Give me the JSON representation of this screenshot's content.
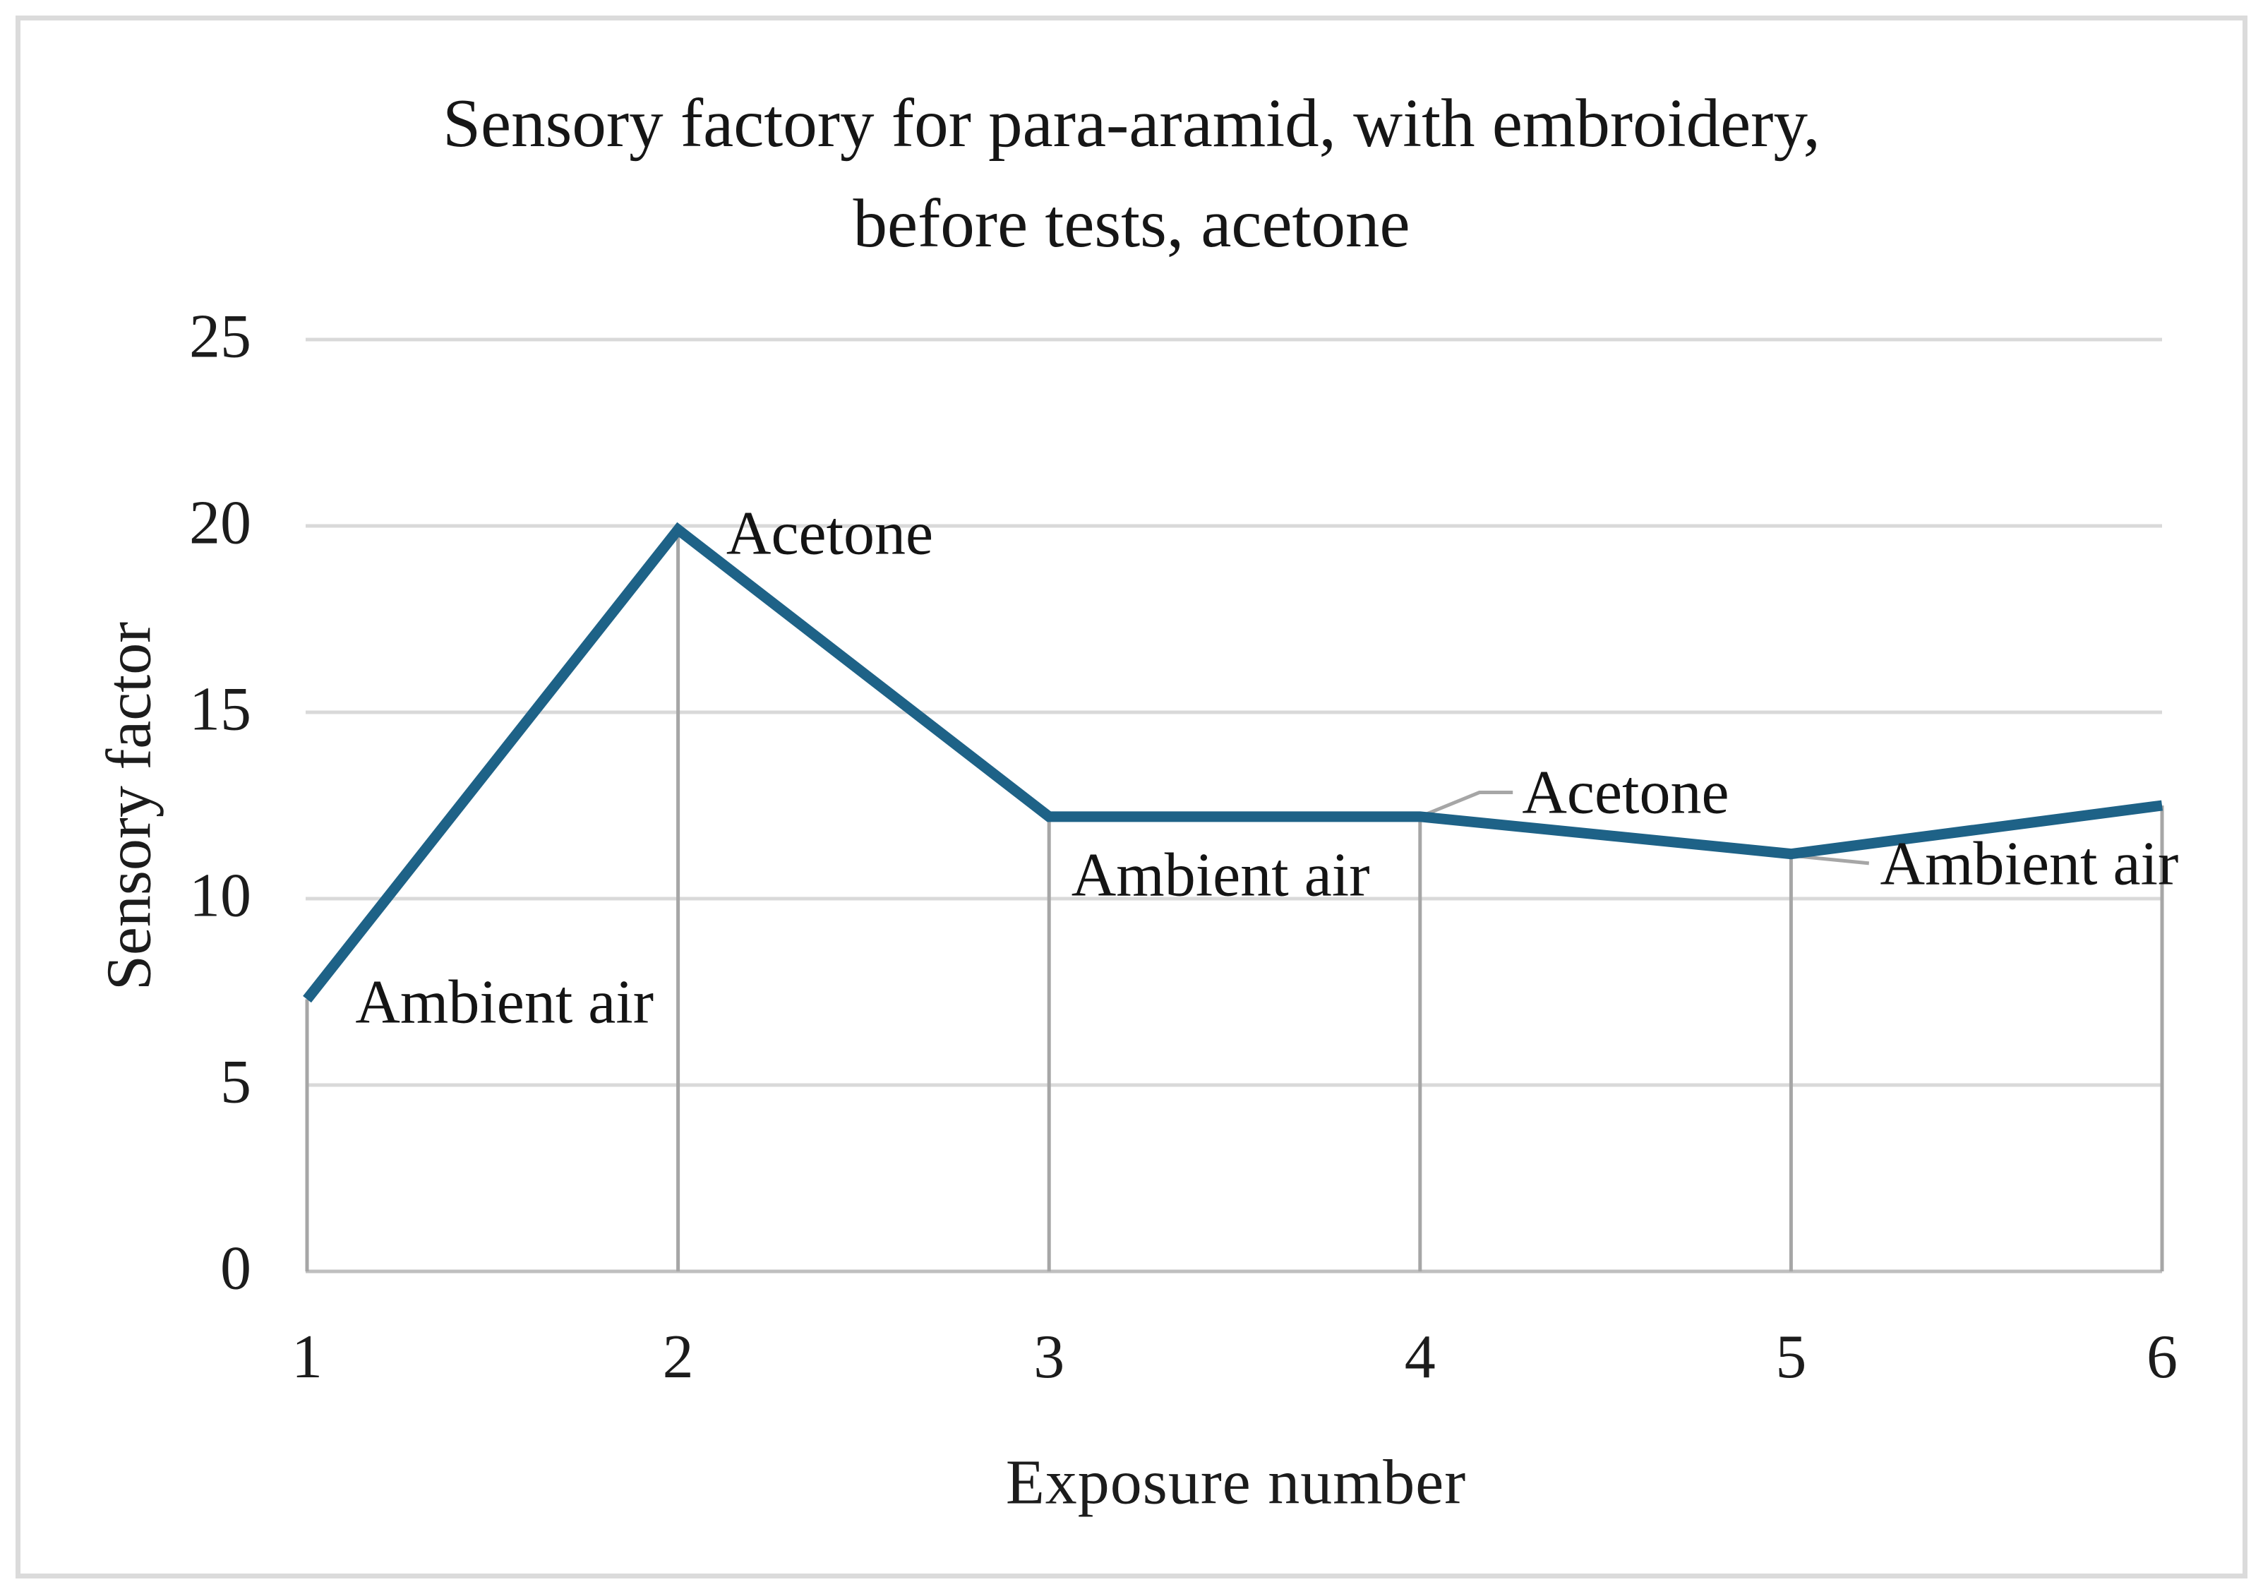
{
  "figure": {
    "title_line1": "Sensory factory for para-aramid, with embroidery,",
    "title_line2": "before tests, acetone"
  },
  "chart_data": {
    "type": "line",
    "title": "Sensory factory for para-aramid, with embroidery, before tests, acetone",
    "xlabel": "Exposure number",
    "ylabel": "Sensory factor",
    "x": [
      1,
      2,
      3,
      4,
      5,
      6
    ],
    "xticks": [
      "1",
      "2",
      "3",
      "4",
      "5",
      "6"
    ],
    "yticks": [
      0,
      5,
      10,
      15,
      20,
      25
    ],
    "ylim": [
      0,
      25
    ],
    "xlim": [
      1,
      6
    ],
    "grid": "horizontal",
    "drop_lines_from_points": true,
    "legend": "none",
    "series": [
      {
        "name": "Sensory factor",
        "values": [
          7.3,
          19.9,
          12.2,
          12.2,
          11.2,
          12.5
        ]
      }
    ],
    "annotations": [
      {
        "text": "Ambient air",
        "x": 1.13,
        "y": 7.21
      },
      {
        "text": "Acetone",
        "x": 2.13,
        "y": 19.8
      },
      {
        "text": "Ambient air",
        "x": 3.06,
        "y": 10.62
      },
      {
        "text": "Acetone",
        "x": 4.275,
        "y": 12.85,
        "leader": [
          [
            4.0,
            12.2
          ],
          [
            4.16,
            12.85
          ],
          [
            4.25,
            12.85
          ]
        ]
      },
      {
        "text": "Ambient air",
        "x": 5.24,
        "y": 10.93,
        "leader": [
          [
            5.005,
            11.15
          ],
          [
            5.21,
            10.95
          ]
        ]
      }
    ],
    "colors": {
      "line": "#1e6287",
      "gridline": "#d9d9d9",
      "baseline": "#bfbfbf",
      "drop_line": "#a6a6a6",
      "leader_line": "#a6a6a6",
      "text": "#1c1c1c",
      "frame": "#dbdbdb",
      "background": "#ffffff"
    }
  }
}
